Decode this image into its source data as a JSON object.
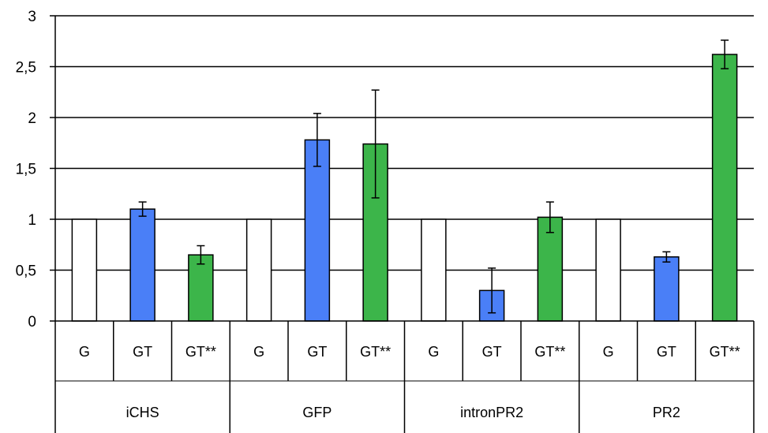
{
  "chart_data": {
    "type": "bar",
    "groups": [
      "iCHS",
      "GFP",
      "intronPR2",
      "PR2"
    ],
    "categories": [
      "G",
      "GT",
      "GT**"
    ],
    "colors": {
      "G": "#ffffff",
      "GT": "#4a7ff7",
      "GT**": "#3cb54a"
    },
    "bars": [
      {
        "group": "iCHS",
        "category": "G",
        "value": 1.0,
        "err_low": null,
        "err_high": null
      },
      {
        "group": "iCHS",
        "category": "GT",
        "value": 1.1,
        "err_low": 1.03,
        "err_high": 1.17
      },
      {
        "group": "iCHS",
        "category": "GT**",
        "value": 0.65,
        "err_low": 0.56,
        "err_high": 0.74
      },
      {
        "group": "GFP",
        "category": "G",
        "value": 1.0,
        "err_low": null,
        "err_high": null
      },
      {
        "group": "GFP",
        "category": "GT",
        "value": 1.78,
        "err_low": 1.52,
        "err_high": 2.04
      },
      {
        "group": "GFP",
        "category": "GT**",
        "value": 1.74,
        "err_low": 1.21,
        "err_high": 2.27
      },
      {
        "group": "intronPR2",
        "category": "G",
        "value": 1.0,
        "err_low": null,
        "err_high": null
      },
      {
        "group": "intronPR2",
        "category": "GT",
        "value": 0.3,
        "err_low": 0.08,
        "err_high": 0.52
      },
      {
        "group": "intronPR2",
        "category": "GT**",
        "value": 1.02,
        "err_low": 0.87,
        "err_high": 1.17
      },
      {
        "group": "PR2",
        "category": "G",
        "value": 1.0,
        "err_low": null,
        "err_high": null
      },
      {
        "group": "PR2",
        "category": "GT",
        "value": 0.63,
        "err_low": 0.58,
        "err_high": 0.68
      },
      {
        "group": "PR2",
        "category": "GT**",
        "value": 2.62,
        "err_low": 2.48,
        "err_high": 2.76
      }
    ],
    "y_ticks": [
      "0",
      "0,5",
      "1",
      "1,5",
      "2",
      "2,5",
      "3"
    ],
    "ylim": [
      0,
      3
    ],
    "grid": true,
    "legend": "none"
  }
}
